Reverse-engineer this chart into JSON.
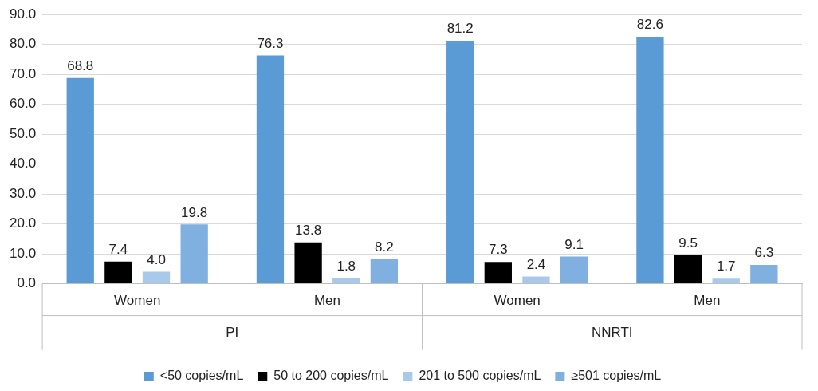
{
  "chart_data": {
    "type": "bar",
    "categories": [
      "Women",
      "Men",
      "Women",
      "Men"
    ],
    "annotations": [
      "PI",
      "NNRTI"
    ],
    "series": [
      {
        "name": "<50 copies/mL",
        "color": "#5b9bd5",
        "values": [
          68.8,
          76.3,
          81.2,
          82.6
        ],
        "value_labels": [
          "68.8",
          "76.3",
          "81.2",
          "82.6"
        ]
      },
      {
        "name": "50 to 200 copies/mL",
        "color": "#000000",
        "values": [
          7.4,
          13.8,
          7.3,
          9.5
        ],
        "value_labels": [
          "7.4",
          "13.8",
          "7.3",
          "9.5"
        ]
      },
      {
        "name": "201 to 500 copies/mL",
        "color": "#a9c9ea",
        "values": [
          4.0,
          1.8,
          2.4,
          1.7
        ],
        "value_labels": [
          "4.0",
          "1.8",
          "2.4",
          "1.7"
        ]
      },
      {
        "name": "≥501 copies/mL",
        "color": "#7fb0e0",
        "values": [
          19.8,
          8.2,
          9.1,
          6.3
        ],
        "value_labels": [
          "19.8",
          "8.2",
          "9.1",
          "6.3"
        ]
      }
    ],
    "ylim": [
      0,
      90
    ],
    "yticks": [
      {
        "value": 0,
        "label": "0.0"
      },
      {
        "value": 10,
        "label": "10.0"
      },
      {
        "value": 20,
        "label": "20.0"
      },
      {
        "value": 30,
        "label": "30.0"
      },
      {
        "value": 40,
        "label": "40.0"
      },
      {
        "value": 50,
        "label": "50.0"
      },
      {
        "value": 60,
        "label": "60.0"
      },
      {
        "value": 70,
        "label": "70.0"
      },
      {
        "value": 80,
        "label": "80.0"
      },
      {
        "value": 90,
        "label": "90.0"
      }
    ],
    "grid": "y",
    "legend": "bottom"
  }
}
